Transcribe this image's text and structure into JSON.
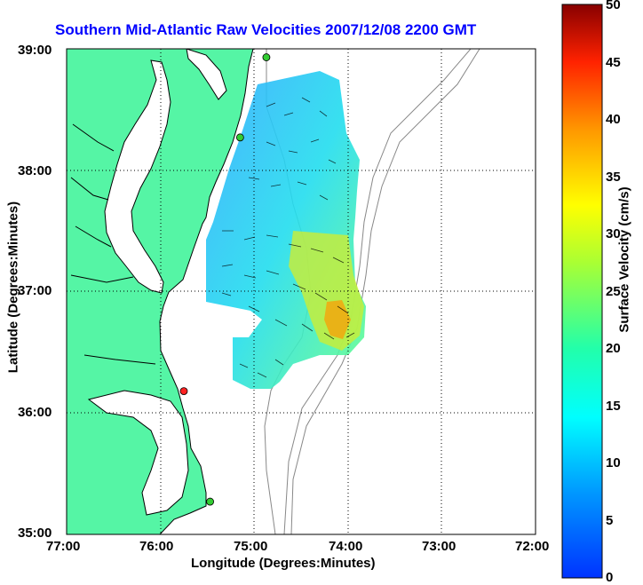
{
  "title": "Southern Mid-Atlantic Raw Velocities 2007/12/08 2200 GMT",
  "xlabel": "Longitude (Degrees:Minutes)",
  "ylabel": "Latitude (Degrees:Minutes)",
  "x_ticks": [
    "77:00",
    "76:00",
    "75:00",
    "74:00",
    "73:00",
    "72:00"
  ],
  "y_ticks": [
    "39:00",
    "38:00",
    "37:00",
    "36:00",
    "35:00"
  ],
  "colorbar": {
    "label": "Surface Velocity (cm/s)",
    "ticks": [
      "50",
      "45",
      "40",
      "35",
      "30",
      "25",
      "20",
      "15",
      "10",
      "5",
      "0"
    ],
    "range": [
      0,
      50
    ]
  },
  "map": {
    "lon_range": [
      -77,
      -72
    ],
    "lat_range": [
      35,
      39
    ],
    "land_color": "#55f5a5",
    "sea_color": "#ffffff",
    "stations": [
      {
        "lon": -74.87,
        "lat": 38.93,
        "color": "#33cc33"
      },
      {
        "lon": -75.15,
        "lat": 38.27,
        "color": "#33cc33"
      },
      {
        "lon": -75.75,
        "lat": 36.18,
        "color": "#ff2222"
      },
      {
        "lon": -75.47,
        "lat": 35.27,
        "color": "#33cc33"
      }
    ]
  }
}
